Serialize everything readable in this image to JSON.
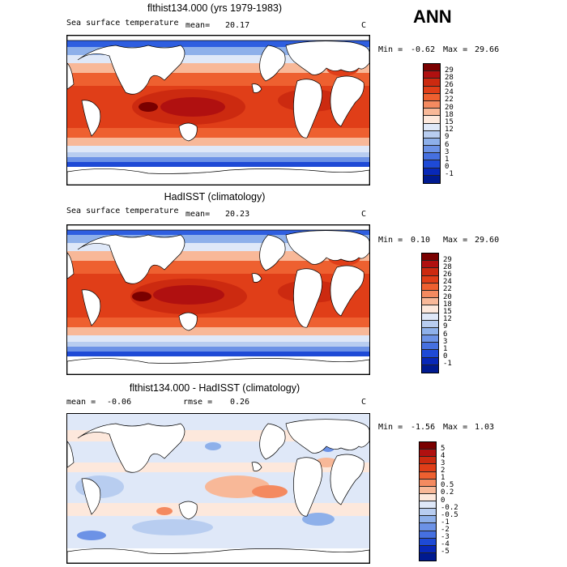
{
  "season": "ANN",
  "panels": [
    {
      "title": "flthist134.000 (yrs 1979-1983)",
      "variable": "Sea surface temperature",
      "mean_label": "mean=",
      "mean_value": "20.17",
      "units": "C",
      "min_label": "Min =",
      "min_value": "-0.62",
      "max_label": "Max =",
      "max_value": "29.66",
      "colorbar_levels": [
        "29",
        "28",
        "26",
        "24",
        "22",
        "20",
        "18",
        "15",
        "12",
        "9",
        "6",
        "3",
        "1",
        "0",
        "-1"
      ],
      "colorbar_colors": [
        "#7a0000",
        "#b01010",
        "#cc2a10",
        "#e03e18",
        "#ee6030",
        "#f48a60",
        "#f8b898",
        "#fde8dc",
        "#dfe8f8",
        "#b8cdf0",
        "#8eb0ea",
        "#6c92e6",
        "#4670e0",
        "#1e4ad6",
        "#0828b8",
        "#001a90"
      ]
    },
    {
      "title": "HadISST (climatology)",
      "variable": "Sea surface temperature",
      "mean_label": "mean=",
      "mean_value": "20.23",
      "units": "C",
      "min_label": "Min =",
      "min_value": "0.10",
      "max_label": "Max =",
      "max_value": "29.60",
      "colorbar_levels": [
        "29",
        "28",
        "26",
        "24",
        "22",
        "20",
        "18",
        "15",
        "12",
        "9",
        "6",
        "3",
        "1",
        "0",
        "-1"
      ],
      "colorbar_colors": [
        "#7a0000",
        "#b01010",
        "#cc2a10",
        "#e03e18",
        "#ee6030",
        "#f48a60",
        "#f8b898",
        "#fde8dc",
        "#dfe8f8",
        "#b8cdf0",
        "#8eb0ea",
        "#6c92e6",
        "#4670e0",
        "#1e4ad6",
        "#0828b8",
        "#001a90"
      ]
    },
    {
      "title": "flthist134.000 - HadISST (climatology)",
      "mean_label": "mean =",
      "mean_value": "-0.06",
      "rmse_label": "rmse =",
      "rmse_value": "0.26",
      "units": "C",
      "min_label": "Min =",
      "min_value": "-1.56",
      "max_label": "Max =",
      "max_value": "1.03",
      "colorbar_levels": [
        "5",
        "4",
        "3",
        "2",
        "1",
        "0.5",
        "0.2",
        "0",
        "-0.2",
        "-0.5",
        "-1",
        "-2",
        "-3",
        "-4",
        "-5"
      ],
      "colorbar_colors": [
        "#7a0000",
        "#b01010",
        "#cc2a10",
        "#e03e18",
        "#ee6030",
        "#f48a60",
        "#f8b898",
        "#fde8dc",
        "#dfe8f8",
        "#b8cdf0",
        "#8eb0ea",
        "#6c92e6",
        "#4670e0",
        "#1e4ad6",
        "#0828b8",
        "#001a90"
      ]
    }
  ]
}
